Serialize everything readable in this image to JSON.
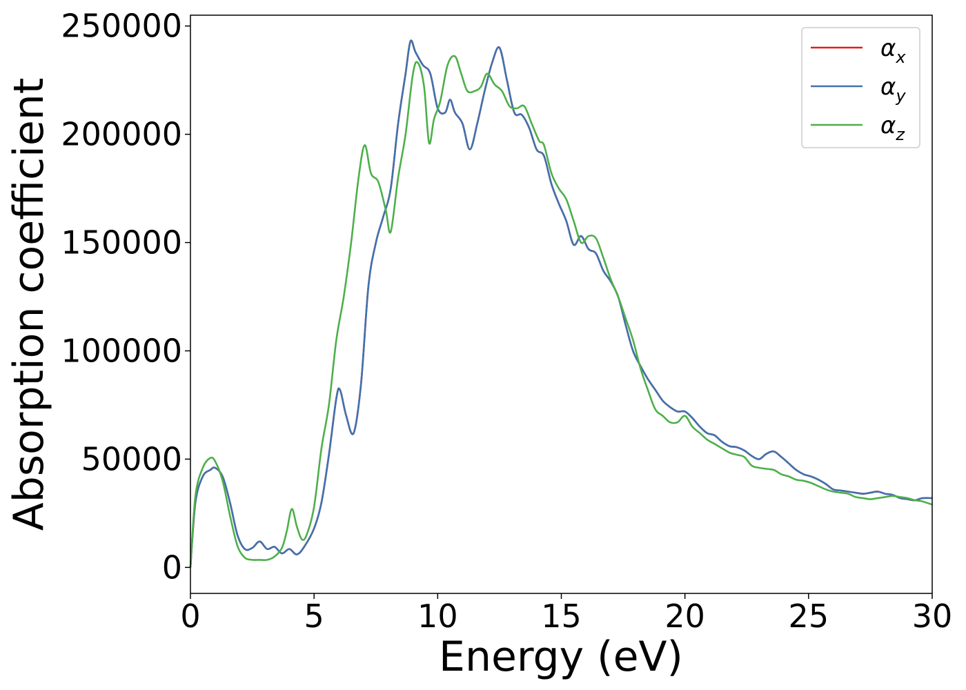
{
  "chart_data": {
    "type": "line",
    "xlabel": "Energy (eV)",
    "ylabel": "Absorption coefficient",
    "xlim": [
      0,
      30
    ],
    "ylim": [
      -12000,
      255000
    ],
    "xticks": [
      0,
      5,
      10,
      15,
      20,
      25,
      30
    ],
    "xtick_labels": [
      "0",
      "5",
      "10",
      "15",
      "20",
      "25",
      "30"
    ],
    "yticks": [
      0,
      50000,
      100000,
      150000,
      200000,
      250000
    ],
    "ytick_labels": [
      "0",
      "50000",
      "100000",
      "150000",
      "200000",
      "250000"
    ],
    "grid": false,
    "legend_position": "top-right",
    "series": [
      {
        "name": "αx",
        "symbol": "α",
        "subscript": "x",
        "color": "#e41a1c",
        "x": [
          0,
          0.2,
          0.5,
          0.8,
          1.0,
          1.3,
          1.6,
          1.9,
          2.2,
          2.5,
          2.8,
          3.1,
          3.4,
          3.7,
          4.0,
          4.3,
          4.6,
          5.0,
          5.3,
          5.6,
          5.9,
          6.05,
          6.3,
          6.6,
          6.9,
          7.2,
          7.5,
          7.8,
          8.1,
          8.4,
          8.7,
          8.9,
          9.1,
          9.4,
          9.7,
          10.0,
          10.3,
          10.5,
          10.7,
          11.0,
          11.3,
          11.6,
          11.9,
          12.2,
          12.5,
          12.8,
          13.1,
          13.4,
          13.7,
          14.0,
          14.3,
          14.6,
          14.9,
          15.2,
          15.5,
          15.8,
          16.1,
          16.4,
          16.7,
          17.0,
          17.3,
          17.6,
          17.9,
          18.2,
          18.5,
          18.8,
          19.1,
          19.4,
          19.7,
          20.0,
          20.3,
          20.6,
          20.9,
          21.2,
          21.5,
          21.8,
          22.1,
          22.4,
          22.7,
          23.0,
          23.3,
          23.6,
          23.9,
          24.2,
          24.5,
          24.8,
          25.1,
          25.4,
          25.7,
          26.0,
          26.3,
          26.6,
          26.9,
          27.2,
          27.5,
          27.8,
          28.1,
          28.4,
          28.7,
          29.0,
          29.3,
          29.6,
          30.0
        ],
        "y": [
          0,
          30000,
          42000,
          45000,
          46000,
          42000,
          30000,
          15000,
          8500,
          9000,
          12000,
          8500,
          9500,
          6500,
          8500,
          6000,
          9500,
          18000,
          30000,
          52000,
          78000,
          82000,
          70000,
          62000,
          85000,
          130000,
          150000,
          162000,
          175000,
          205000,
          228000,
          243000,
          238000,
          232000,
          228000,
          212000,
          210000,
          216000,
          210000,
          205000,
          193000,
          205000,
          220000,
          233000,
          240000,
          225000,
          210000,
          209000,
          203000,
          193000,
          190000,
          177000,
          168000,
          160000,
          149000,
          153000,
          147000,
          145000,
          137000,
          132000,
          125000,
          112000,
          100000,
          93000,
          87000,
          82000,
          77000,
          74000,
          72000,
          72000,
          69000,
          65000,
          62000,
          61000,
          58000,
          56000,
          55500,
          54000,
          51500,
          50000,
          52500,
          53500,
          51000,
          48000,
          45000,
          43000,
          42000,
          40500,
          38500,
          36000,
          35500,
          35000,
          34500,
          34000,
          34500,
          35000,
          34000,
          33500,
          32000,
          31500,
          31000,
          32000,
          32000
        ]
      },
      {
        "name": "αy",
        "symbol": "α",
        "subscript": "y",
        "color": "#3f72af",
        "x": [
          0,
          0.2,
          0.5,
          0.8,
          1.0,
          1.3,
          1.6,
          1.9,
          2.2,
          2.5,
          2.8,
          3.1,
          3.4,
          3.7,
          4.0,
          4.3,
          4.6,
          5.0,
          5.3,
          5.6,
          5.9,
          6.05,
          6.3,
          6.6,
          6.9,
          7.2,
          7.5,
          7.8,
          8.1,
          8.4,
          8.7,
          8.9,
          9.1,
          9.4,
          9.7,
          10.0,
          10.3,
          10.5,
          10.7,
          11.0,
          11.3,
          11.6,
          11.9,
          12.2,
          12.5,
          12.8,
          13.1,
          13.4,
          13.7,
          14.0,
          14.3,
          14.6,
          14.9,
          15.2,
          15.5,
          15.8,
          16.1,
          16.4,
          16.7,
          17.0,
          17.3,
          17.6,
          17.9,
          18.2,
          18.5,
          18.8,
          19.1,
          19.4,
          19.7,
          20.0,
          20.3,
          20.6,
          20.9,
          21.2,
          21.5,
          21.8,
          22.1,
          22.4,
          22.7,
          23.0,
          23.3,
          23.6,
          23.9,
          24.2,
          24.5,
          24.8,
          25.1,
          25.4,
          25.7,
          26.0,
          26.3,
          26.6,
          26.9,
          27.2,
          27.5,
          27.8,
          28.1,
          28.4,
          28.7,
          29.0,
          29.3,
          29.6,
          30.0
        ],
        "y": [
          0,
          30000,
          42000,
          45000,
          46000,
          42000,
          30000,
          15000,
          8500,
          9000,
          12000,
          8500,
          9500,
          6500,
          8500,
          6000,
          9500,
          18000,
          30000,
          52000,
          78000,
          82000,
          70000,
          62000,
          85000,
          130000,
          150000,
          162000,
          175000,
          205000,
          228000,
          243000,
          238000,
          232000,
          228000,
          212000,
          210000,
          216000,
          210000,
          205000,
          193000,
          205000,
          220000,
          233000,
          240000,
          225000,
          210000,
          209000,
          203000,
          193000,
          190000,
          177000,
          168000,
          160000,
          149000,
          153000,
          147000,
          145000,
          137000,
          132000,
          125000,
          112000,
          100000,
          93000,
          87000,
          82000,
          77000,
          74000,
          72000,
          72000,
          69000,
          65000,
          62000,
          61000,
          58000,
          56000,
          55500,
          54000,
          51500,
          50000,
          52500,
          53500,
          51000,
          48000,
          45000,
          43000,
          42000,
          40500,
          38500,
          36000,
          35500,
          35000,
          34500,
          34000,
          34500,
          35000,
          34000,
          33500,
          32000,
          31500,
          31000,
          32000,
          32000
        ]
      },
      {
        "name": "αz",
        "symbol": "α",
        "subscript": "z",
        "color": "#4daf4a",
        "x": [
          0,
          0.2,
          0.5,
          0.8,
          1.0,
          1.3,
          1.6,
          1.9,
          2.2,
          2.5,
          2.8,
          3.1,
          3.4,
          3.7,
          3.9,
          4.1,
          4.3,
          4.5,
          4.7,
          5.0,
          5.3,
          5.6,
          5.9,
          6.2,
          6.5,
          6.8,
          7.05,
          7.3,
          7.6,
          7.9,
          8.1,
          8.4,
          8.7,
          9.0,
          9.2,
          9.45,
          9.65,
          9.85,
          10.1,
          10.4,
          10.7,
          10.95,
          11.2,
          11.5,
          11.75,
          12.0,
          12.3,
          12.6,
          12.9,
          13.2,
          13.5,
          13.8,
          14.1,
          14.3,
          14.6,
          14.9,
          15.2,
          15.5,
          15.8,
          16.1,
          16.4,
          16.7,
          17.0,
          17.3,
          17.6,
          17.9,
          18.2,
          18.5,
          18.8,
          19.1,
          19.4,
          19.7,
          20.0,
          20.3,
          20.6,
          20.9,
          21.2,
          21.5,
          21.8,
          22.1,
          22.4,
          22.7,
          23.0,
          23.3,
          23.6,
          23.9,
          24.2,
          24.5,
          24.8,
          25.1,
          25.4,
          25.7,
          26.0,
          26.3,
          26.6,
          26.9,
          27.2,
          27.5,
          27.8,
          28.1,
          28.4,
          28.7,
          29.0,
          29.3,
          29.6,
          30.0
        ],
        "y": [
          0,
          33000,
          46000,
          50500,
          49000,
          40000,
          24000,
          10000,
          4500,
          3500,
          3500,
          3500,
          5000,
          9000,
          17000,
          27000,
          19000,
          13000,
          15000,
          28000,
          55000,
          75000,
          105000,
          125000,
          150000,
          180000,
          195000,
          182000,
          178000,
          165000,
          155000,
          180000,
          200000,
          228000,
          233000,
          222000,
          196000,
          207000,
          215000,
          232000,
          236000,
          228000,
          220000,
          220000,
          222000,
          228000,
          223000,
          220000,
          213000,
          212000,
          213000,
          205000,
          197000,
          195000,
          182000,
          175000,
          170000,
          160000,
          150000,
          153000,
          152000,
          143000,
          133000,
          125000,
          115000,
          105000,
          92000,
          82000,
          73000,
          70000,
          67000,
          67000,
          70000,
          65000,
          62000,
          59000,
          57000,
          55000,
          53000,
          52000,
          51000,
          47000,
          46000,
          45500,
          45000,
          43000,
          42000,
          40500,
          40000,
          39000,
          37500,
          36000,
          35000,
          34500,
          34000,
          32500,
          32000,
          31500,
          32000,
          32500,
          33000,
          32500,
          32000,
          31000,
          30500,
          29000
        ]
      }
    ]
  }
}
